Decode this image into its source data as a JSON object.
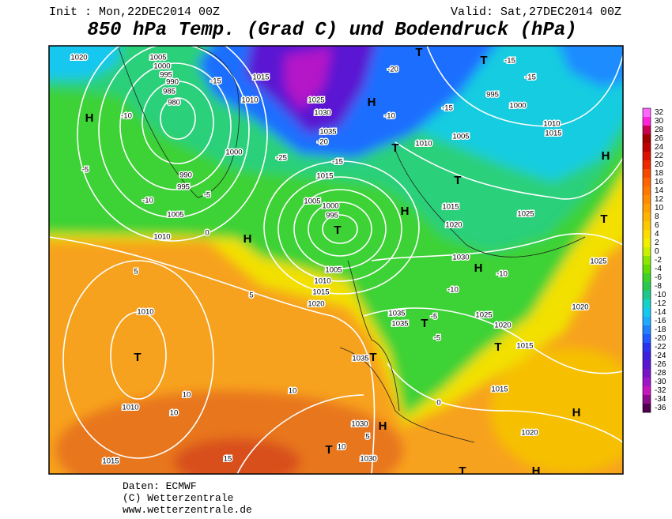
{
  "header": {
    "init": "Init : Mon,22DEC2014 00Z",
    "valid": "Valid: Sat,27DEC2014 00Z",
    "title": "850 hPa Temp. (Grad C) und Bodendruck (hPa)"
  },
  "map": {
    "isobar_labels": [
      "1020",
      "1005",
      "1000",
      "995",
      "990",
      "985",
      "980",
      "1010",
      "1015",
      "1025",
      "1030",
      "1035",
      "1010",
      "1005",
      "995",
      "1000",
      "1010",
      "1015",
      "990",
      "995",
      "1005",
      "1010",
      "1000",
      "1015",
      "1005",
      "1000",
      "995",
      "1015",
      "1020",
      "1025",
      "1030",
      "1005",
      "1010",
      "1015",
      "1020",
      "1035",
      "1035",
      "1025",
      "1020",
      "1015",
      "1010",
      "1010",
      "1015",
      "1035",
      "1030",
      "1030",
      "1015",
      "1020",
      "1020",
      "1025"
    ],
    "isotherm_labels": [
      "-5",
      "-10",
      "-10",
      "-15",
      "-5",
      "0",
      "5",
      "5",
      "10",
      "10",
      "10",
      "15",
      "5",
      "10",
      "-10",
      "-15",
      "-15",
      "-15",
      "-10",
      "-10",
      "-5",
      "-5",
      "0",
      "-20",
      "-20",
      "-25",
      "-15"
    ],
    "pressure_centers": [
      "H",
      "H",
      "T",
      "T",
      "T",
      "T",
      "T",
      "H",
      "T",
      "H",
      "T",
      "H",
      "T",
      "H",
      "H",
      "T",
      "T",
      "H",
      "T",
      "T",
      "H"
    ]
  },
  "colorbar": {
    "levels": [
      32,
      30,
      28,
      26,
      24,
      22,
      20,
      18,
      16,
      14,
      12,
      10,
      8,
      6,
      4,
      2,
      0,
      -2,
      -4,
      -6,
      -8,
      -10,
      -12,
      -14,
      -16,
      -18,
      -20,
      -22,
      -24,
      -26,
      -28,
      -30,
      -32,
      -34,
      -36
    ],
    "colors": [
      "#ff66ff",
      "#ff22dd",
      "#c80050",
      "#a00000",
      "#be0000",
      "#dc1000",
      "#f02800",
      "#f84800",
      "#ff6400",
      "#ff7800",
      "#ff8c00",
      "#ffa000",
      "#ffb400",
      "#ffc800",
      "#ffdc00",
      "#f0f000",
      "#c8f000",
      "#8ce600",
      "#64dc00",
      "#3cd228",
      "#28c850",
      "#1ec88c",
      "#14d2c8",
      "#14c8f0",
      "#1eaaff",
      "#1e82ff",
      "#1e5aff",
      "#2832f0",
      "#3c1edc",
      "#5a14d2",
      "#7814c8",
      "#a014c8",
      "#c814be",
      "#8c0a8c",
      "#500050"
    ]
  },
  "footer": {
    "source": "Daten: ECMWF",
    "copyright": "(C) Wetterzentrale",
    "url": "www.wetterzentrale.de"
  }
}
